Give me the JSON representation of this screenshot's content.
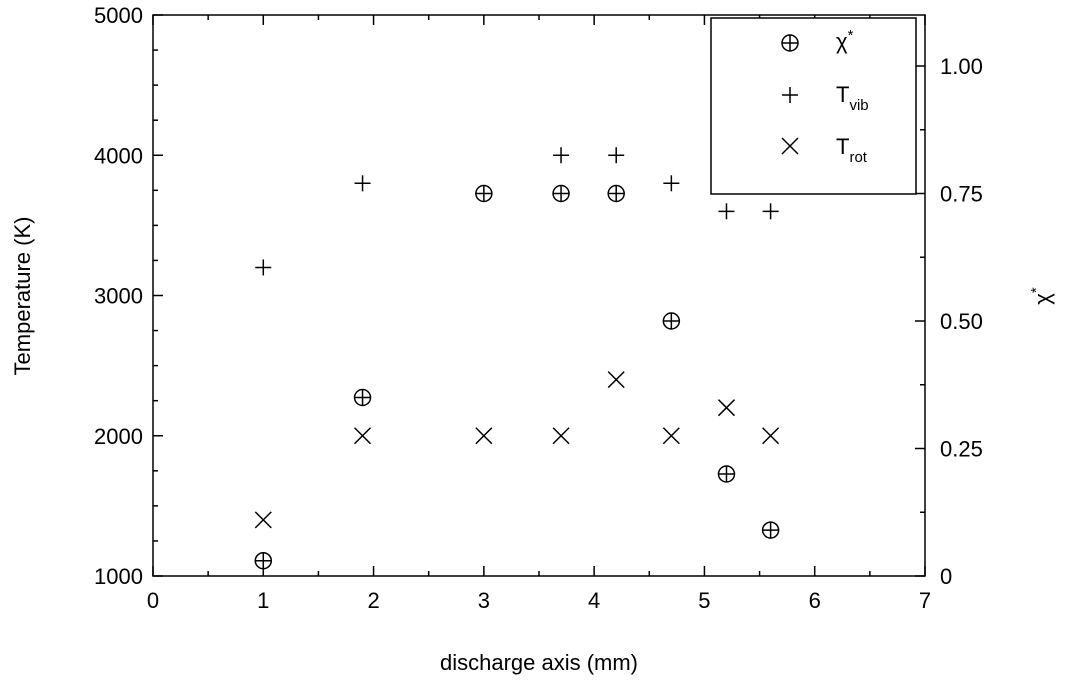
{
  "chart_data": {
    "type": "scatter",
    "xlabel": "discharge axis (mm)",
    "ylabel": "Temperature (K)",
    "y2label": "χ*",
    "xlim": [
      0,
      7
    ],
    "ylim": [
      1000,
      5000
    ],
    "y2lim": [
      0,
      1.1
    ],
    "x_ticks": [
      "0",
      "1",
      "2",
      "3",
      "4",
      "5",
      "6",
      "7"
    ],
    "y_ticks": [
      "1000",
      "2000",
      "3000",
      "4000",
      "5000"
    ],
    "y2_ticks": [
      "0",
      "0.25",
      "0.50",
      "0.75",
      "1.00"
    ],
    "grid": false,
    "legend_position": "top-right",
    "series": [
      {
        "name": "χ*",
        "marker": "circle-plus",
        "axis": "right",
        "x": [
          1.0,
          1.9,
          3.0,
          3.7,
          4.2,
          4.7,
          5.2,
          5.6
        ],
        "values": [
          0.03,
          0.35,
          0.75,
          0.75,
          0.75,
          0.5,
          0.2,
          0.09
        ]
      },
      {
        "name": "T_vib",
        "marker": "plus",
        "axis": "left",
        "x": [
          1.0,
          1.9,
          3.7,
          4.2,
          4.7,
          5.2,
          5.6
        ],
        "values": [
          3200,
          3800,
          4000,
          4000,
          3800,
          3600,
          3600
        ]
      },
      {
        "name": "T_rot",
        "marker": "cross",
        "axis": "left",
        "x": [
          1.0,
          1.9,
          3.0,
          3.7,
          4.2,
          4.7,
          5.2,
          5.6
        ],
        "values": [
          1400,
          2000,
          2000,
          2000,
          2400,
          2000,
          2200,
          2000
        ]
      }
    ],
    "legend": {
      "chi_main": "χ",
      "chi_sup": "*",
      "tvib_main": "T",
      "tvib_sub": "vib",
      "trot_main": "T",
      "trot_sub": "rot"
    },
    "y2label_main": "χ",
    "y2label_sup": "*"
  }
}
